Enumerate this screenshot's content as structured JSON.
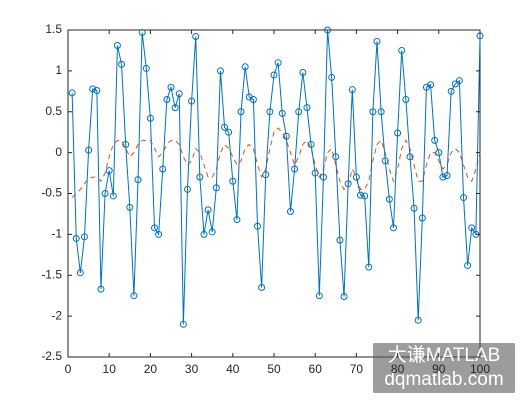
{
  "chart_data": {
    "type": "line",
    "x": [
      1,
      2,
      3,
      4,
      5,
      6,
      7,
      8,
      9,
      10,
      11,
      12,
      13,
      14,
      15,
      16,
      17,
      18,
      19,
      20,
      21,
      22,
      23,
      24,
      25,
      26,
      27,
      28,
      29,
      30,
      31,
      32,
      33,
      34,
      35,
      36,
      37,
      38,
      39,
      40,
      41,
      42,
      43,
      44,
      45,
      46,
      47,
      48,
      49,
      50,
      51,
      52,
      53,
      54,
      55,
      56,
      57,
      58,
      59,
      60,
      61,
      62,
      63,
      64,
      65,
      66,
      67,
      68,
      69,
      70,
      71,
      72,
      73,
      74,
      75,
      76,
      77,
      78,
      79,
      80,
      81,
      82,
      83,
      84,
      85,
      86,
      87,
      88,
      89,
      90,
      91,
      92,
      93,
      94,
      95,
      96,
      97,
      98,
      99,
      100
    ],
    "series": [
      {
        "color": "#0072bd",
        "marker": "circle",
        "dashed": false,
        "values": [
          0.73,
          -1.05,
          -1.47,
          -1.03,
          0.03,
          0.78,
          0.76,
          -1.67,
          -0.5,
          -0.22,
          -0.53,
          1.31,
          1.08,
          0.1,
          -0.67,
          -1.75,
          -0.33,
          1.47,
          1.03,
          0.42,
          -0.92,
          -1.0,
          -0.2,
          0.65,
          0.8,
          0.55,
          0.72,
          -2.1,
          -0.45,
          0.63,
          1.42,
          -0.3,
          -1.0,
          -0.7,
          -0.97,
          -0.43,
          1.0,
          0.31,
          0.25,
          -0.35,
          -0.82,
          0.5,
          1.05,
          0.68,
          0.65,
          -0.9,
          -1.65,
          -0.27,
          0.5,
          0.95,
          1.1,
          0.48,
          0.2,
          -0.72,
          -0.2,
          0.5,
          0.98,
          0.55,
          0.1,
          -0.25,
          -1.75,
          -0.3,
          1.5,
          0.92,
          -0.05,
          -1.07,
          -1.76,
          -0.38,
          0.77,
          -0.3,
          -0.52,
          -0.53,
          -1.4,
          0.5,
          1.36,
          0.5,
          -0.1,
          -0.57,
          -0.92,
          0.24,
          1.25,
          0.65,
          -0.05,
          -0.68,
          -2.05,
          -0.8,
          0.8,
          0.83,
          0.15,
          0.0,
          -0.3,
          -0.28,
          0.75,
          0.84,
          0.88,
          -0.55,
          -1.38,
          -0.92,
          -1.0,
          1.43
        ]
      },
      {
        "color": "#d95319",
        "marker": null,
        "dashed": true,
        "values": [
          -0.55,
          -0.5,
          -0.45,
          -0.38,
          -0.32,
          -0.3,
          -0.3,
          -0.35,
          -0.25,
          -0.05,
          0.1,
          0.15,
          0.15,
          0.05,
          -0.05,
          0.0,
          0.1,
          0.15,
          0.15,
          0.15,
          0.05,
          -0.05,
          0.0,
          0.1,
          0.15,
          0.15,
          0.1,
          -0.05,
          -0.15,
          -0.1,
          0.05,
          0.0,
          -0.15,
          -0.3,
          -0.3,
          -0.2,
          0.0,
          0.1,
          0.05,
          -0.05,
          -0.15,
          -0.1,
          0.05,
          0.1,
          0.05,
          -0.15,
          -0.3,
          -0.2,
          0.05,
          0.25,
          0.3,
          0.25,
          0.15,
          0.0,
          -0.15,
          -0.05,
          0.1,
          0.15,
          0.05,
          -0.15,
          -0.3,
          -0.2,
          0.0,
          0.05,
          -0.15,
          -0.35,
          -0.45,
          -0.4,
          -0.2,
          -0.3,
          -0.45,
          -0.45,
          -0.35,
          -0.1,
          0.1,
          0.15,
          0.0,
          -0.2,
          -0.35,
          -0.2,
          0.05,
          0.15,
          0.05,
          -0.15,
          -0.35,
          -0.35,
          -0.15,
          0.0,
          0.0,
          -0.1,
          -0.2,
          -0.15,
          0.0,
          0.05,
          0.0,
          -0.15,
          -0.3,
          -0.35,
          -0.2,
          0.0
        ]
      }
    ],
    "xlim": [
      0,
      100
    ],
    "xticks": [
      0,
      10,
      20,
      30,
      40,
      50,
      60,
      70,
      80,
      90,
      100
    ],
    "ylim": [
      -2.5,
      1.5
    ],
    "yticks": [
      -2.5,
      -2,
      -1.5,
      -1,
      -0.5,
      0,
      0.5,
      1,
      1.5
    ],
    "grid": false
  },
  "watermark": {
    "title": "大谦MATLAB",
    "url": "dqmatlab.com"
  }
}
